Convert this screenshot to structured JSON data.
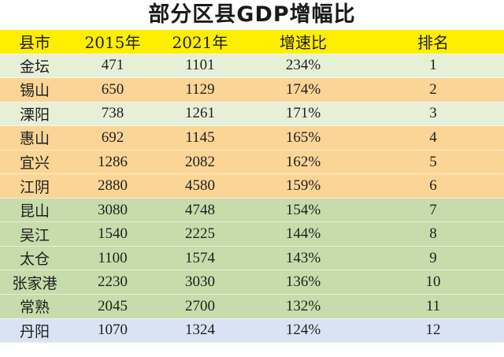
{
  "title": "部分区县GDP增幅比",
  "headers": [
    "县市",
    "2015年",
    "2021年",
    "增速比",
    "排名"
  ],
  "rows": [
    {
      "group": "a",
      "cells": [
        "金坛",
        "471",
        "1101",
        "234%",
        "1"
      ]
    },
    {
      "group": "b",
      "cells": [
        "锡山",
        "650",
        "1129",
        "174%",
        "2"
      ]
    },
    {
      "group": "a",
      "cells": [
        "溧阳",
        "738",
        "1261",
        "171%",
        "3"
      ]
    },
    {
      "group": "b",
      "cells": [
        "惠山",
        "692",
        "1145",
        "165%",
        "4"
      ]
    },
    {
      "group": "b",
      "cells": [
        "宜兴",
        "1286",
        "2082",
        "162%",
        "5"
      ]
    },
    {
      "group": "b",
      "cells": [
        "江阴",
        "2880",
        "4580",
        "159%",
        "6"
      ]
    },
    {
      "group": "c",
      "cells": [
        "昆山",
        "3080",
        "4748",
        "154%",
        "7"
      ]
    },
    {
      "group": "c",
      "cells": [
        "吴江",
        "1540",
        "2225",
        "144%",
        "8"
      ]
    },
    {
      "group": "c",
      "cells": [
        "太仓",
        "1100",
        "1574",
        "143%",
        "9"
      ]
    },
    {
      "group": "c",
      "cells": [
        "张家港",
        "2230",
        "3030",
        "136%",
        "10"
      ]
    },
    {
      "group": "c",
      "cells": [
        "常熟",
        "2045",
        "2700",
        "132%",
        "11"
      ]
    },
    {
      "group": "d",
      "cells": [
        "丹阳",
        "1070",
        "1324",
        "124%",
        "12"
      ]
    }
  ],
  "colors": {
    "header": "#ffee00",
    "group_a": "#e6f0d6",
    "group_b": "#fad596",
    "group_c": "#c6dcab",
    "group_d": "#d9e3f3"
  }
}
